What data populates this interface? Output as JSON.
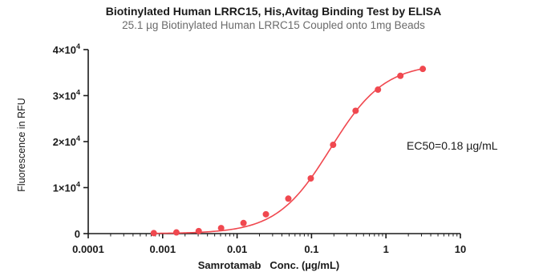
{
  "chart_data": {
    "type": "scatter",
    "title": "Biotinylated Human LRRC15, His,Avitag Binding Test by ELISA",
    "subtitle": "25.1 µg Biotinylated Human LRRC15 Coupled onto 1mg Beads",
    "xlabel": "Samrotamab   Conc. (µg/mL)",
    "ylabel": "Fluorescence in RFU",
    "x_scale": "log",
    "xlim": [
      0.0001,
      10
    ],
    "ylim": [
      0,
      40000
    ],
    "x_ticks": [
      {
        "value": 0.0001,
        "label": "0.0001"
      },
      {
        "value": 0.001,
        "label": "0.001"
      },
      {
        "value": 0.01,
        "label": "0.01"
      },
      {
        "value": 0.1,
        "label": "0.1"
      },
      {
        "value": 1,
        "label": "1"
      },
      {
        "value": 10,
        "label": "10"
      }
    ],
    "y_ticks": [
      {
        "value": 0,
        "base": "0",
        "exp": ""
      },
      {
        "value": 10000,
        "base": "1×10",
        "exp": "4"
      },
      {
        "value": 20000,
        "base": "2×10",
        "exp": "4"
      },
      {
        "value": 30000,
        "base": "3×10",
        "exp": "4"
      },
      {
        "value": 40000,
        "base": "4×10",
        "exp": "4"
      }
    ],
    "series": [
      {
        "color": "#f0484f",
        "x": [
          0.00076,
          0.00153,
          0.00305,
          0.0061,
          0.0122,
          0.0244,
          0.0488,
          0.0977,
          0.195,
          0.391,
          0.781,
          1.563,
          3.125
        ],
        "y": [
          100,
          250,
          550,
          1200,
          2300,
          4200,
          7600,
          12000,
          19300,
          26700,
          31300,
          34300,
          35800
        ]
      }
    ],
    "fit": {
      "bottom": 0,
      "top": 37000,
      "ec50": 0.18,
      "hill": 1.2
    },
    "annotation": "EC50=0.18 µg/mL",
    "grid": false
  }
}
